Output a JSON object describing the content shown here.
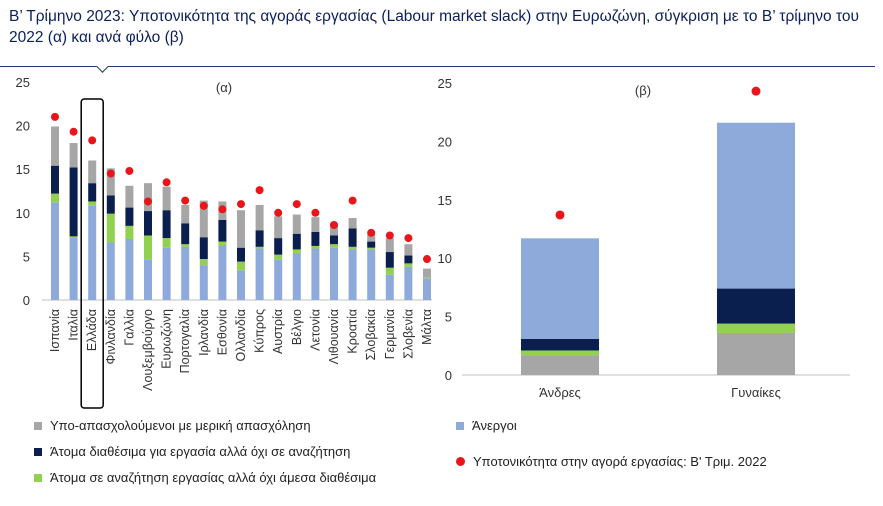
{
  "header": {
    "prefix": "Β’ Τρίμηνο 2023:",
    "title": " Υποτονικότητα της αγοράς εργασίας (Labour market slack) στην Ευρωζώνη, σύγκριση με το Β’ τρίμηνο του 2022 (α) και ανά φύλο (β)"
  },
  "colors": {
    "underemployed": "#a6a6a6",
    "available_not_seeking": "#0b1f4f",
    "seeking_not_available": "#92d050",
    "unemployed": "#8eaadb",
    "dot": "#e8151b",
    "highlight_box": "#000000"
  },
  "legend": {
    "underemployed": "Υπο-απασχολούμενοι με μερική απασχόληση",
    "available_not_seeking": "Άτομα διαθέσιμα για εργασία αλλά όχι σε αναζήτηση",
    "seeking_not_available": "Άτομα σε αναζήτηση εργασίας αλλά όχι άμεσα διαθέσιμα",
    "unemployed": "Άνεργοι",
    "slack_2022": "Υποτονικότητα στην αγορά εργασίας: Β' Τριμ. 2022"
  },
  "chart_data": [
    {
      "panel": "(α)",
      "type": "bar",
      "stacked": true,
      "ylim": [
        0,
        25
      ],
      "yticks": [
        0,
        5,
        10,
        15,
        20,
        25
      ],
      "highlight": "Ελλάδα",
      "categories": [
        "Ισπανία",
        "Ιταλία",
        "Ελλάδα",
        "Φινλανδία",
        "Γαλλία",
        "Λουξεμβούργο",
        "Ευρωζώνη",
        "Πορτογαλία",
        "Ιρλανδία",
        "Εσθονία",
        "Ολλανδία",
        "Κύπρος",
        "Αυστρία",
        "Βέλγιο",
        "Λετονία",
        "Λιθουανία",
        "Κροατία",
        "Σλοβακία",
        "Γερμανία",
        "Σλοβενία",
        "Μάλτα"
      ],
      "series": [
        {
          "name": "Άνεργοι",
          "key": "unemployed",
          "values": [
            11.2,
            7.1,
            10.8,
            6.6,
            7.0,
            4.6,
            6.0,
            6.1,
            4.0,
            6.3,
            3.4,
            5.9,
            4.6,
            5.4,
            5.9,
            6.0,
            5.8,
            5.8,
            2.9,
            3.8,
            2.5
          ]
        },
        {
          "name": "Άτομα σε αναζήτηση εργασίας αλλά όχι άμεσα διαθέσιμα",
          "key": "seeking_not_available",
          "values": [
            1.0,
            0.2,
            0.5,
            3.3,
            1.5,
            2.8,
            1.1,
            0.3,
            0.7,
            0.4,
            1.0,
            0.2,
            0.6,
            0.4,
            0.3,
            0.4,
            0.3,
            0.2,
            0.8,
            0.4,
            0.1
          ]
        },
        {
          "name": "Άτομα διαθέσιμα για εργασία αλλά όχι σε αναζήτηση",
          "key": "available_not_seeking",
          "values": [
            3.2,
            7.9,
            2.1,
            2.1,
            2.1,
            2.8,
            3.2,
            2.4,
            2.5,
            2.5,
            1.6,
            1.9,
            1.9,
            1.8,
            1.6,
            1.0,
            2.1,
            0.7,
            1.8,
            0.9,
            0.0
          ]
        },
        {
          "name": "Υπο-απασχολούμενοι με μερική απασχόληση",
          "key": "underemployed",
          "values": [
            4.5,
            2.8,
            2.6,
            3.1,
            2.5,
            3.2,
            2.7,
            2.1,
            4.2,
            2.1,
            4.3,
            2.9,
            2.5,
            2.2,
            1.7,
            1.4,
            1.2,
            0.8,
            1.6,
            1.3,
            1.0
          ]
        }
      ],
      "dots_2022": [
        21.0,
        19.3,
        18.3,
        14.5,
        14.8,
        11.3,
        13.5,
        11.4,
        10.8,
        10.4,
        11.0,
        12.6,
        10.0,
        11.0,
        10.0,
        8.6,
        11.4,
        7.7,
        7.4,
        7.1,
        4.7
      ]
    },
    {
      "panel": "(β)",
      "type": "bar",
      "stacked": true,
      "ylim": [
        0,
        25
      ],
      "yticks": [
        0,
        5,
        10,
        15,
        20,
        25
      ],
      "categories": [
        "Άνδρες",
        "Γυναίκες"
      ],
      "series": [
        {
          "name": "Υπο-απασχολούμενοι με μερική απασχόληση",
          "key": "underemployed",
          "values": [
            1.7,
            3.6
          ]
        },
        {
          "name": "Άτομα σε αναζήτηση εργασίας αλλά όχι άμεσα διαθέσιμα",
          "key": "seeking_not_available",
          "values": [
            0.4,
            0.8
          ]
        },
        {
          "name": "Άτομα διαθέσιμα για εργασία αλλά όχι σε αναζήτηση",
          "key": "available_not_seeking",
          "values": [
            1.0,
            3.0
          ]
        },
        {
          "name": "Άνεργοι",
          "key": "unemployed",
          "values": [
            8.6,
            14.2
          ]
        }
      ],
      "dots_2022": [
        13.7,
        24.3
      ]
    }
  ]
}
